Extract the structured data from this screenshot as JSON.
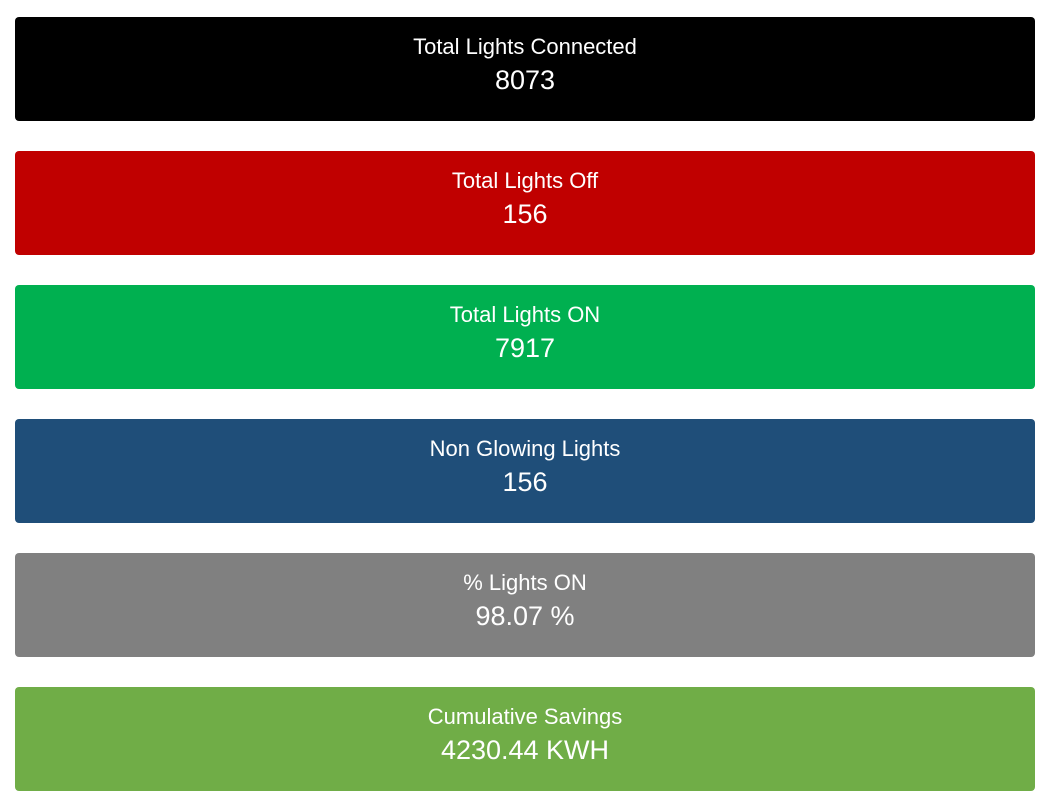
{
  "cards": [
    {
      "label": "Total Lights Connected",
      "value": "8073",
      "color": "#000000"
    },
    {
      "label": "Total Lights Off",
      "value": "156",
      "color": "#c00000"
    },
    {
      "label": "Total Lights ON",
      "value": "7917",
      "color": "#00b050"
    },
    {
      "label": "Non Glowing Lights",
      "value": "156",
      "color": "#1f4e79"
    },
    {
      "label": "% Lights ON",
      "value": "98.07 %",
      "color": "#808080"
    },
    {
      "label": "Cumulative Savings",
      "value": "4230.44 KWH",
      "color": "#70ad47"
    }
  ]
}
